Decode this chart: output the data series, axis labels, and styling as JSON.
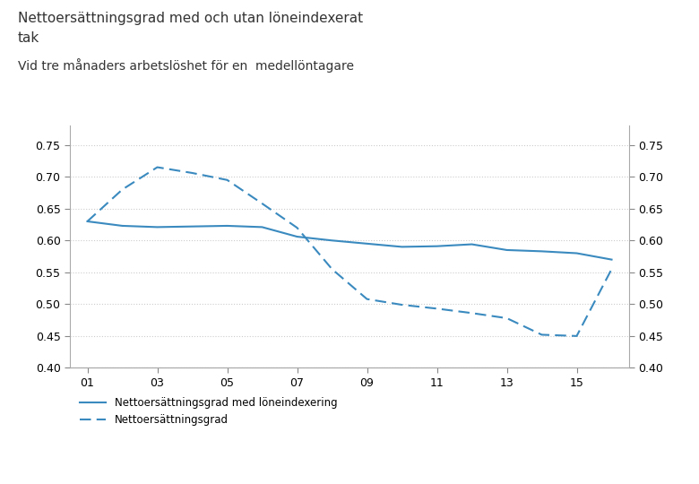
{
  "title_line1": "Nettoersättningsgrad med och utan löneindexerat",
  "title_line2": "tak",
  "subtitle": "Vid tre månaders arbetslöshet för en  medellöntagare",
  "solid_line": {
    "x": [
      2001,
      2002,
      2003,
      2004,
      2005,
      2006,
      2007,
      2008,
      2009,
      2010,
      2011,
      2012,
      2013,
      2014,
      2015,
      2016
    ],
    "y": [
      0.63,
      0.623,
      0.621,
      0.622,
      0.623,
      0.621,
      0.606,
      0.6,
      0.595,
      0.59,
      0.591,
      0.594,
      0.585,
      0.583,
      0.58,
      0.57
    ],
    "label": "Nettoersättningsgrad med löneindexering",
    "color": "#3a8abf",
    "linestyle": "solid",
    "linewidth": 1.5
  },
  "dashed_line": {
    "x": [
      2001,
      2002,
      2003,
      2004,
      2005,
      2006,
      2007,
      2008,
      2009,
      2010,
      2011,
      2012,
      2013,
      2014,
      2015,
      2016
    ],
    "y": [
      0.63,
      0.68,
      0.715,
      0.706,
      0.695,
      0.658,
      0.62,
      0.555,
      0.508,
      0.499,
      0.493,
      0.486,
      0.478,
      0.452,
      0.45,
      0.555
    ],
    "label": "Nettoersättningsgrad",
    "color": "#3a8abf",
    "linestyle": "dashed",
    "linewidth": 1.5
  },
  "ylim": [
    0.4,
    0.78
  ],
  "yticks": [
    0.4,
    0.45,
    0.5,
    0.55,
    0.6,
    0.65,
    0.7,
    0.75
  ],
  "xlim": [
    2000.5,
    2016.5
  ],
  "xtick_positions": [
    2001,
    2003,
    2005,
    2007,
    2009,
    2011,
    2013,
    2015
  ],
  "xtick_labels": [
    "01",
    "03",
    "05",
    "07",
    "09",
    "11",
    "13",
    "15"
  ],
  "background_color": "#ffffff",
  "grid_color": "#cccccc",
  "font_color": "#333333"
}
